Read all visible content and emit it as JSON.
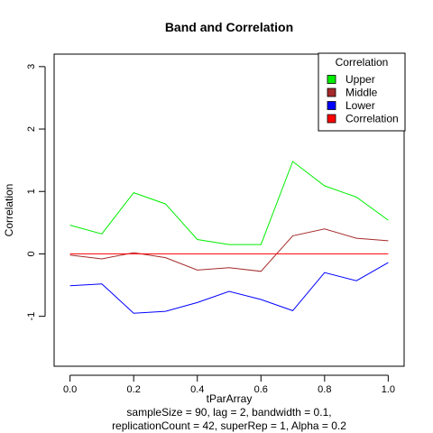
{
  "chart_data": {
    "type": "line",
    "title": "Band and Correlation",
    "xlabel": "tParArray",
    "ylabel": "Correlation",
    "subtitle_lines": [
      "sampleSize = 90, lag = 2, bandwidth = 0.1,",
      "replicationCount = 42, superRep = 1, Alpha = 0.2"
    ],
    "xlim": [
      -0.05,
      1.05
    ],
    "ylim": [
      -1.8,
      3.2
    ],
    "x_ticks": [
      0.0,
      0.2,
      0.4,
      0.6,
      0.8,
      1.0
    ],
    "x_tick_labels": [
      "0.0",
      "0.2",
      "0.4",
      "0.6",
      "0.8",
      "1.0"
    ],
    "y_ticks": [
      -1,
      0,
      1,
      2,
      3
    ],
    "y_tick_labels": [
      "-1",
      "0",
      "1",
      "2",
      "3"
    ],
    "x": [
      0.0,
      0.1,
      0.2,
      0.3,
      0.4,
      0.5,
      0.6,
      0.7,
      0.8,
      0.9,
      1.0
    ],
    "series": [
      {
        "name": "Upper",
        "color": "#00ee00",
        "values": [
          0.46,
          0.32,
          0.98,
          0.8,
          0.23,
          0.15,
          0.15,
          1.48,
          1.09,
          0.91,
          0.54
        ]
      },
      {
        "name": "Middle",
        "color": "#a52a2a",
        "values": [
          -0.02,
          -0.08,
          0.02,
          -0.06,
          -0.26,
          -0.22,
          -0.28,
          0.29,
          0.4,
          0.25,
          0.21
        ]
      },
      {
        "name": "Lower",
        "color": "#0000ff",
        "values": [
          -0.51,
          -0.48,
          -0.95,
          -0.92,
          -0.78,
          -0.6,
          -0.73,
          -0.91,
          -0.3,
          -0.43,
          -0.14
        ]
      },
      {
        "name": "Correlation",
        "color": "#ff0000",
        "values": [
          0,
          0,
          0,
          0,
          0,
          0,
          0,
          0,
          0,
          0,
          0
        ]
      }
    ],
    "legend": {
      "title": "Correlation",
      "position": "top-right",
      "entries": [
        "Upper",
        "Middle",
        "Lower",
        "Correlation"
      ]
    },
    "grid": false
  }
}
